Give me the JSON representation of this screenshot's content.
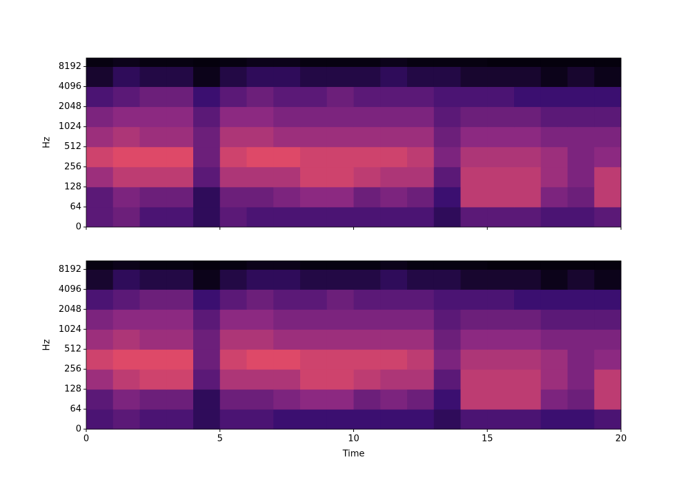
{
  "chart_data": [
    {
      "type": "heatmap",
      "colormap": "magma",
      "zlim": [
        0,
        100
      ],
      "xlim": [
        0,
        20
      ],
      "xticks": [
        0,
        5,
        10,
        15,
        20
      ],
      "show_xticklabels": false,
      "ylim": [
        0,
        11025
      ],
      "yscale": "symlog",
      "linthresh": 64,
      "yticks": [
        0,
        64,
        128,
        256,
        512,
        1024,
        2048,
        4096,
        8192
      ],
      "ylabel": "Hz",
      "xbins": [
        0,
        1,
        2,
        3,
        4,
        5,
        6,
        7,
        8,
        9,
        10,
        11,
        12,
        13,
        14,
        15,
        16,
        17,
        18,
        19,
        20
      ],
      "ybins": [
        0,
        64,
        128,
        256,
        512,
        1024,
        2048,
        4096,
        8192,
        11025
      ],
      "z": [
        [
          35,
          40,
          30,
          30,
          20,
          35,
          30,
          30,
          30,
          30,
          30,
          30,
          30,
          20,
          35,
          35,
          35,
          30,
          30,
          35
        ],
        [
          35,
          45,
          40,
          40,
          20,
          40,
          40,
          45,
          50,
          50,
          40,
          45,
          40,
          25,
          65,
          65,
          65,
          45,
          40,
          65
        ],
        [
          55,
          65,
          65,
          65,
          35,
          60,
          60,
          60,
          70,
          70,
          65,
          60,
          60,
          35,
          65,
          65,
          65,
          55,
          45,
          65
        ],
        [
          70,
          75,
          75,
          75,
          40,
          70,
          75,
          75,
          70,
          70,
          70,
          70,
          65,
          45,
          60,
          60,
          60,
          55,
          45,
          50
        ],
        [
          55,
          60,
          55,
          55,
          40,
          60,
          60,
          55,
          55,
          55,
          55,
          55,
          55,
          40,
          50,
          50,
          50,
          45,
          45,
          45
        ],
        [
          45,
          50,
          50,
          50,
          35,
          50,
          50,
          45,
          45,
          45,
          45,
          45,
          45,
          35,
          40,
          40,
          40,
          35,
          35,
          35
        ],
        [
          30,
          35,
          40,
          40,
          25,
          35,
          40,
          35,
          35,
          40,
          35,
          35,
          35,
          30,
          30,
          30,
          25,
          25,
          25,
          25
        ],
        [
          10,
          20,
          15,
          15,
          5,
          15,
          20,
          20,
          15,
          15,
          15,
          20,
          15,
          15,
          10,
          10,
          10,
          5,
          10,
          5
        ],
        [
          3,
          5,
          3,
          3,
          2,
          3,
          5,
          5,
          3,
          3,
          3,
          5,
          3,
          3,
          3,
          2,
          2,
          2,
          2,
          2
        ]
      ]
    },
    {
      "type": "heatmap",
      "colormap": "magma",
      "zlim": [
        0,
        100
      ],
      "xlim": [
        0,
        20
      ],
      "xticks": [
        0,
        5,
        10,
        15,
        20
      ],
      "show_xticklabels": true,
      "xlabel": "Time",
      "ylim": [
        0,
        11025
      ],
      "yscale": "symlog",
      "linthresh": 64,
      "yticks": [
        0,
        64,
        128,
        256,
        512,
        1024,
        2048,
        4096,
        8192
      ],
      "ylabel": "Hz",
      "xbins": [
        0,
        1,
        2,
        3,
        4,
        5,
        6,
        7,
        8,
        9,
        10,
        11,
        12,
        13,
        14,
        15,
        16,
        17,
        18,
        19,
        20
      ],
      "ybins": [
        0,
        64,
        128,
        256,
        512,
        1024,
        2048,
        4096,
        8192,
        11025
      ],
      "z": [
        [
          30,
          35,
          30,
          30,
          20,
          30,
          30,
          25,
          25,
          25,
          25,
          25,
          25,
          20,
          30,
          30,
          30,
          25,
          25,
          30
        ],
        [
          35,
          45,
          40,
          40,
          20,
          40,
          40,
          45,
          50,
          50,
          40,
          45,
          40,
          25,
          65,
          65,
          65,
          45,
          40,
          65
        ],
        [
          55,
          65,
          70,
          70,
          35,
          60,
          60,
          60,
          70,
          70,
          65,
          60,
          60,
          35,
          65,
          65,
          65,
          55,
          45,
          65
        ],
        [
          70,
          75,
          75,
          75,
          40,
          70,
          75,
          75,
          70,
          70,
          70,
          70,
          65,
          45,
          60,
          60,
          60,
          55,
          45,
          50
        ],
        [
          55,
          60,
          55,
          55,
          40,
          60,
          60,
          55,
          55,
          55,
          55,
          55,
          55,
          40,
          50,
          50,
          50,
          45,
          45,
          45
        ],
        [
          45,
          50,
          50,
          50,
          35,
          50,
          50,
          45,
          45,
          45,
          45,
          45,
          45,
          35,
          40,
          40,
          40,
          35,
          35,
          35
        ],
        [
          30,
          35,
          40,
          40,
          25,
          35,
          40,
          35,
          35,
          40,
          35,
          35,
          35,
          30,
          30,
          30,
          25,
          25,
          25,
          25
        ],
        [
          10,
          20,
          15,
          15,
          5,
          15,
          20,
          20,
          15,
          15,
          15,
          20,
          15,
          15,
          10,
          10,
          10,
          5,
          10,
          5
        ],
        [
          3,
          5,
          3,
          3,
          2,
          3,
          5,
          5,
          3,
          3,
          3,
          5,
          3,
          3,
          3,
          2,
          2,
          2,
          2,
          2
        ]
      ]
    }
  ]
}
